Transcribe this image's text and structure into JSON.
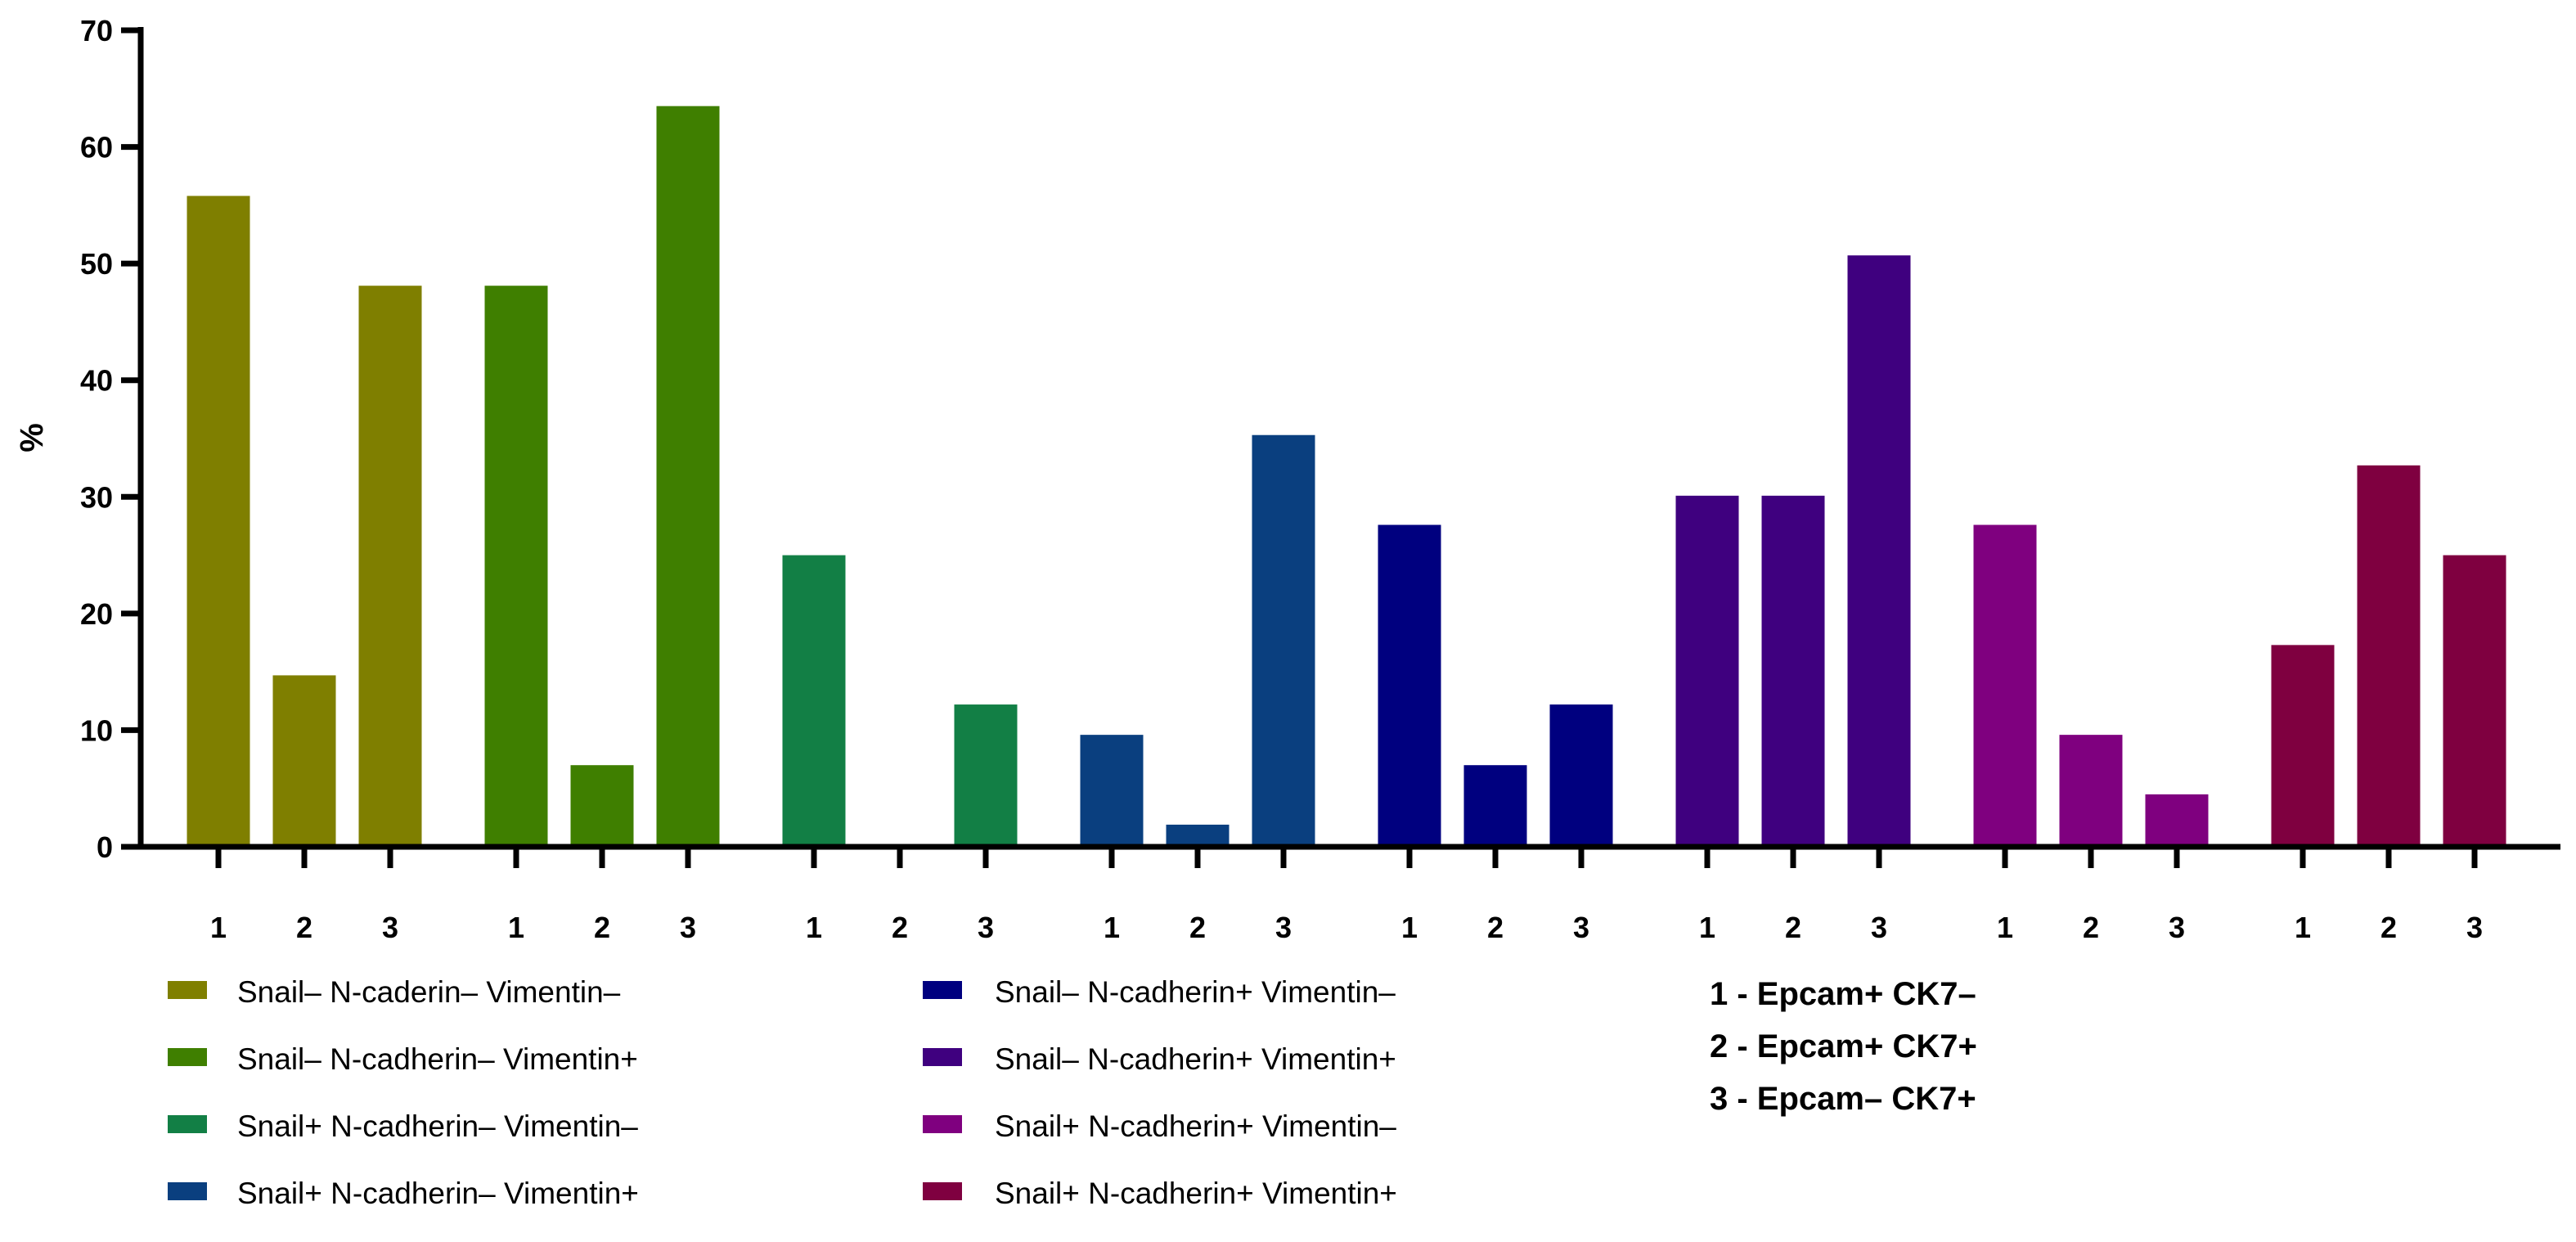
{
  "chart_data": {
    "type": "bar",
    "title": "",
    "xlabel": "",
    "ylabel": "%",
    "ylim": [
      0,
      70
    ],
    "yticks": [
      0,
      10,
      20,
      30,
      40,
      50,
      60,
      70
    ],
    "ytick_labels": [
      "0",
      "10",
      "20",
      "30",
      "40",
      "50",
      "60",
      "70"
    ],
    "categories": [
      "1",
      "2",
      "3"
    ],
    "grid": false,
    "legend_position": "bottom-left",
    "series": [
      {
        "name": "Snail– N-caderin– Vimentin–",
        "color": "#7F7F00",
        "values": [
          55.8,
          14.7,
          48.1
        ]
      },
      {
        "name": "Snail– N-cadherin– Vimentin+",
        "color": "#3F7F00",
        "values": [
          48.1,
          7.0,
          63.5
        ]
      },
      {
        "name": "Snail+ N-cadherin– Vimentin–",
        "color": "#127F45",
        "values": [
          25.0,
          0.0,
          12.2
        ]
      },
      {
        "name": "Snail+ N-cadherin– Vimentin+",
        "color": "#0A3F7F",
        "values": [
          9.6,
          1.9,
          35.3
        ]
      },
      {
        "name": "Snail– N-cadherin+ Vimentin–",
        "color": "#00007F",
        "values": [
          27.6,
          7.0,
          12.2
        ]
      },
      {
        "name": "Snail– N-cadherin+ Vimentin+",
        "color": "#3F007F",
        "values": [
          30.1,
          30.1,
          50.7
        ]
      },
      {
        "name": "Snail+ N-cadherin+ Vimentin–",
        "color": "#7F007F",
        "values": [
          27.6,
          9.6,
          4.5
        ]
      },
      {
        "name": "Snail+ N-cadherin+ Vimentin+",
        "color": "#7F0040",
        "values": [
          17.3,
          32.7,
          25.0
        ]
      }
    ],
    "annotations": [
      "1 - Epcam+ CK7–",
      "2 - Epcam+ CK7+",
      "3 - Epcam– CK7+"
    ]
  }
}
